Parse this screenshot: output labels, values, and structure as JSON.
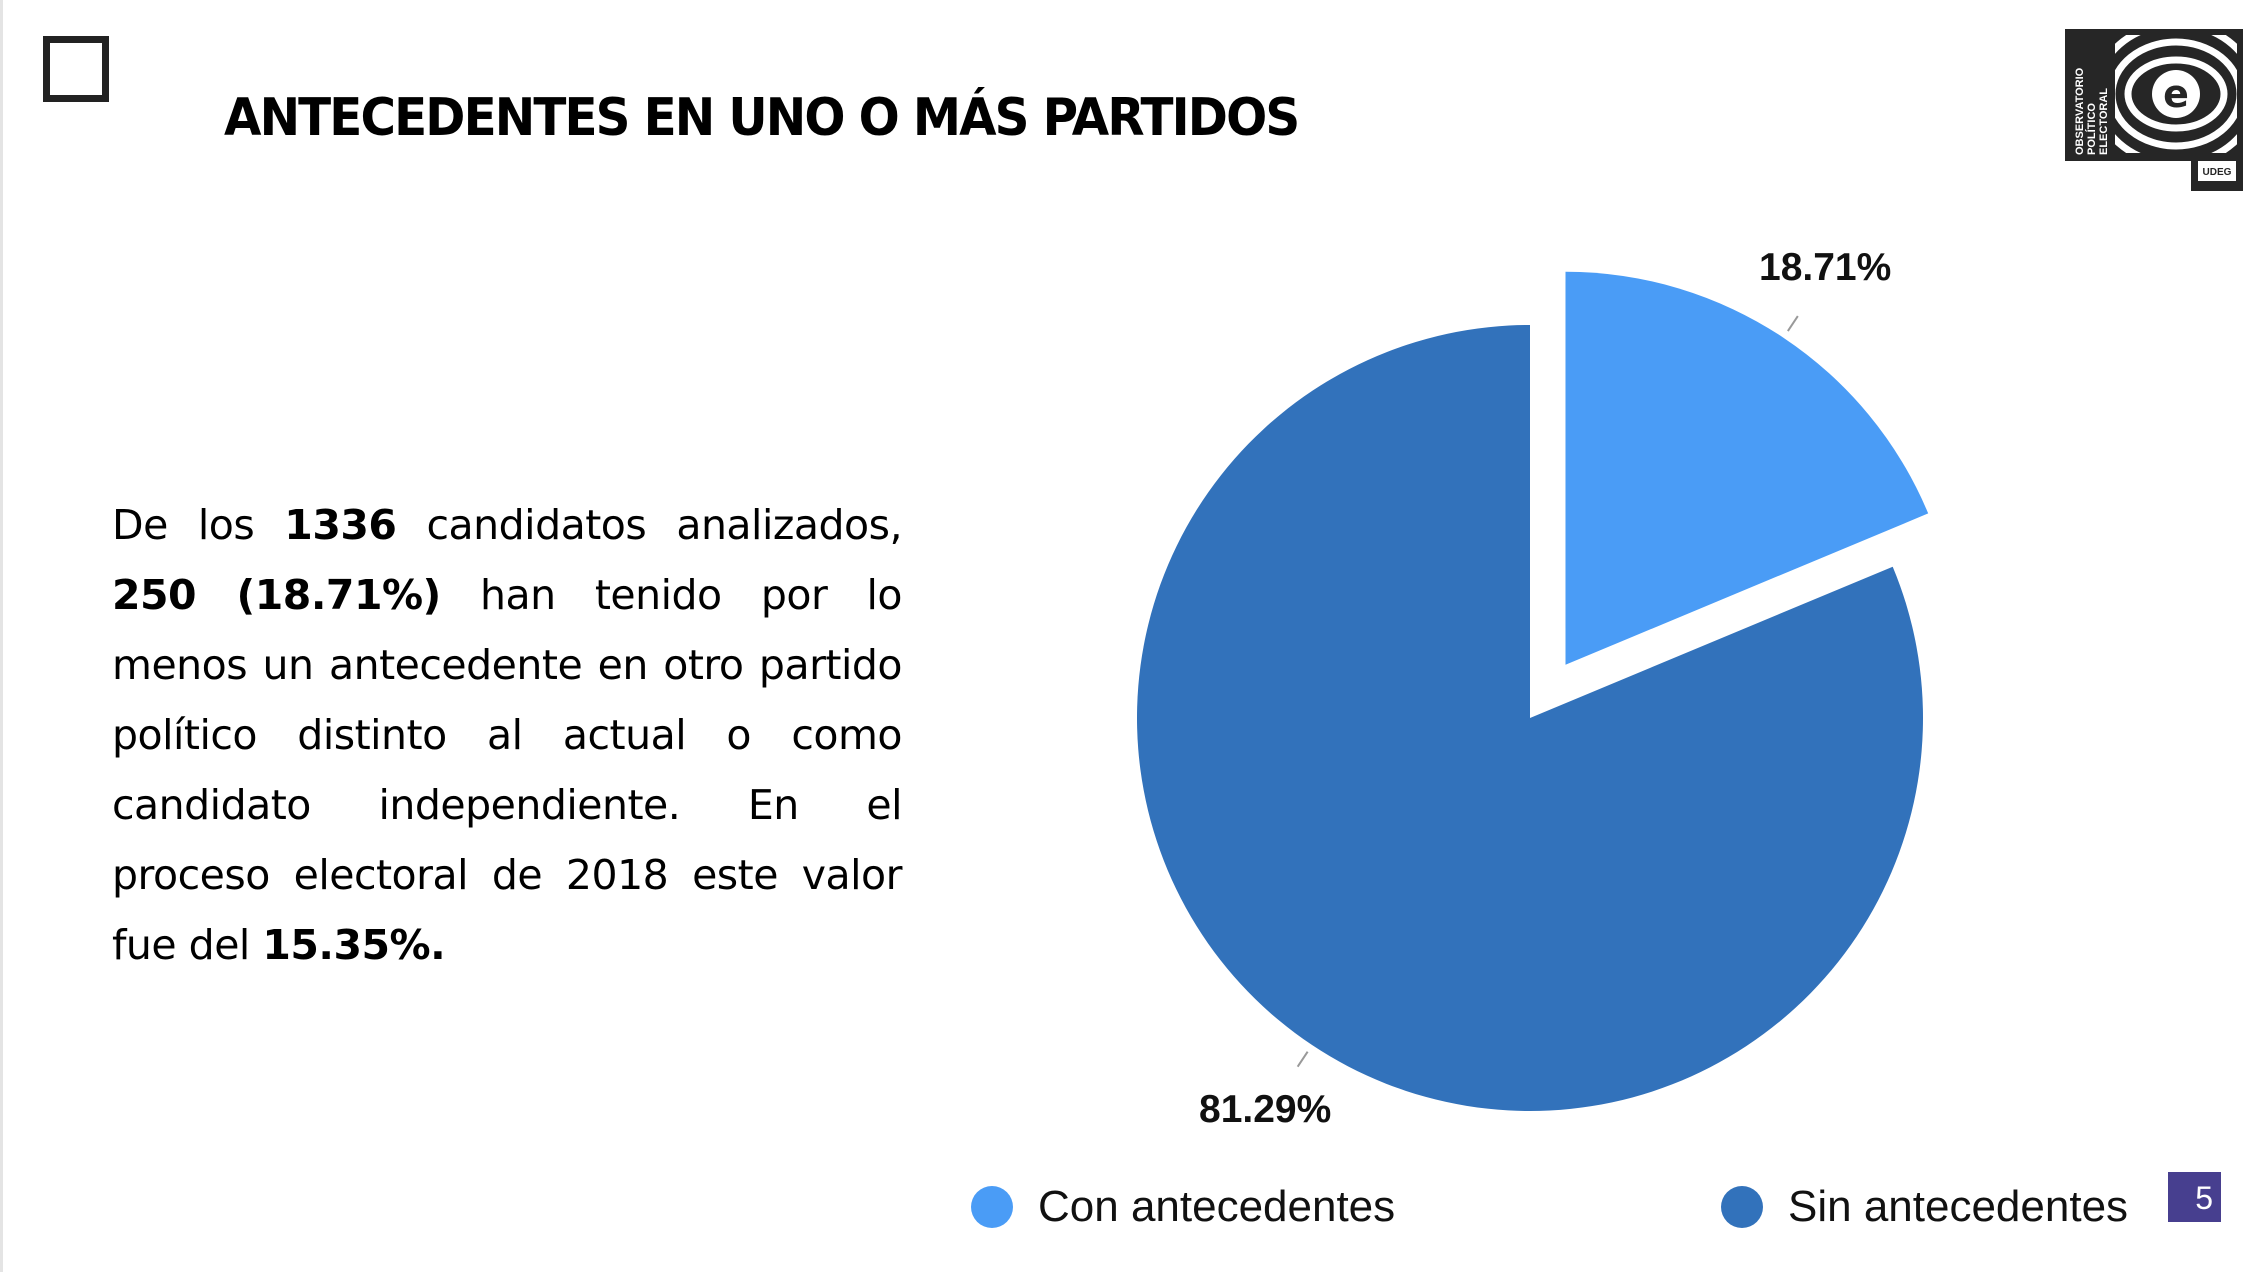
{
  "slide": {
    "title": "ANTECEDENTES EN UNO O MÁS PARTIDOS",
    "page_number": "5",
    "logo_text": "OBSERVATORIO POLÍTICO ELECTORAL UDEG"
  },
  "paragraph": [
    {
      "text": "De los ",
      "bold": false
    },
    {
      "text": "1336",
      "bold": true
    },
    {
      "text": " candidatos analizados, ",
      "bold": false
    },
    {
      "text": "250 (18.71%)",
      "bold": true
    },
    {
      "text": " han tenido por lo menos un antecedente en otro partido político distinto al actual o como candidato independiente. En el proceso electoral de 2018 este valor fue del ",
      "bold": false
    },
    {
      "text": "15.35%.",
      "bold": true
    }
  ],
  "chart_data": {
    "type": "pie",
    "categories": [
      "Con antecedentes",
      "Sin antecedentes"
    ],
    "values": [
      18.71,
      81.29
    ],
    "labels": [
      "18.71%",
      "81.29%"
    ],
    "colors": [
      "#4a9cf6",
      "#3272bb"
    ],
    "exploded": [
      true,
      false
    ],
    "legend_position": "bottom"
  }
}
